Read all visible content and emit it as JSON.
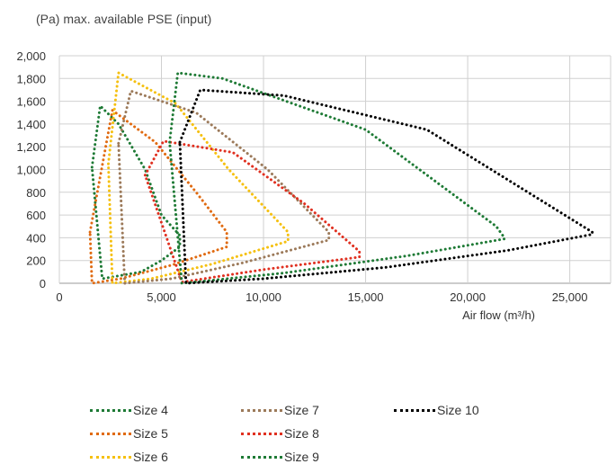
{
  "chart_data": {
    "type": "line",
    "title": "",
    "ylabel": "(Pa) max. available PSE (input)",
    "xlabel": "Air flow (m³/h)",
    "xlim": [
      0,
      27000
    ],
    "ylim": [
      0,
      2000
    ],
    "x_ticks": [
      0,
      5000,
      10000,
      15000,
      20000,
      25000
    ],
    "y_ticks": [
      0,
      200,
      400,
      600,
      800,
      1000,
      1200,
      1400,
      1600,
      1800,
      2000
    ],
    "x_tick_labels": [
      "0",
      "5,000",
      "10,000",
      "15,000",
      "20,000",
      "25,000"
    ],
    "y_tick_labels": [
      "0",
      "200",
      "400",
      "600",
      "800",
      "1,000",
      "1,200",
      "1,400",
      "1,600",
      "1,800",
      "2,000"
    ],
    "grid": true,
    "legend_position": "bottom",
    "series": [
      {
        "name": "Size 4",
        "color": "#1e7a35",
        "x": [
          1600,
          2000,
          2900,
          4200,
          5000,
          5900,
          5900,
          5000,
          4000,
          2100,
          1600
        ],
        "y": [
          1020,
          1560,
          1400,
          1000,
          600,
          420,
          320,
          200,
          100,
          40,
          1020
        ]
      },
      {
        "name": "Size 5",
        "color": "#e06a10",
        "x": [
          1500,
          2600,
          4700,
          6700,
          8200,
          8200,
          5500,
          3000,
          1600,
          1500
        ],
        "y": [
          450,
          1520,
          1240,
          800,
          450,
          320,
          160,
          40,
          0,
          450
        ]
      },
      {
        "name": "Size 6",
        "color": "#f5c010",
        "x": [
          2400,
          2900,
          5700,
          8300,
          11200,
          11200,
          7500,
          4500,
          2600,
          2400
        ],
        "y": [
          1050,
          1850,
          1580,
          1000,
          450,
          370,
          170,
          40,
          0,
          1050
        ]
      },
      {
        "name": "Size 7",
        "color": "#9c7a5a",
        "x": [
          2900,
          3500,
          6700,
          10200,
          13200,
          13200,
          9000,
          5500,
          3200,
          2900
        ],
        "y": [
          1230,
          1690,
          1500,
          1000,
          450,
          380,
          180,
          40,
          0,
          1230
        ]
      },
      {
        "name": "Size 8",
        "color": "#e03020",
        "x": [
          4200,
          5100,
          8500,
          12000,
          14700,
          14700,
          10000,
          6000,
          4200
        ],
        "y": [
          950,
          1250,
          1150,
          700,
          280,
          230,
          120,
          10,
          950
        ]
      },
      {
        "name": "Size 9",
        "color": "#1e7a35",
        "x": [
          5400,
          5800,
          8000,
          15000,
          21400,
          21800,
          21800,
          17000,
          11000,
          6000,
          5400
        ],
        "y": [
          1240,
          1850,
          1800,
          1350,
          500,
          400,
          390,
          240,
          90,
          0,
          1240
        ]
      },
      {
        "name": "Size 10",
        "color": "#000000",
        "x": [
          5900,
          6900,
          11000,
          18000,
          26100,
          26100,
          22000,
          16000,
          10000,
          6200,
          5900
        ],
        "y": [
          1240,
          1700,
          1650,
          1350,
          450,
          430,
          290,
          140,
          40,
          0,
          1240
        ]
      }
    ]
  }
}
